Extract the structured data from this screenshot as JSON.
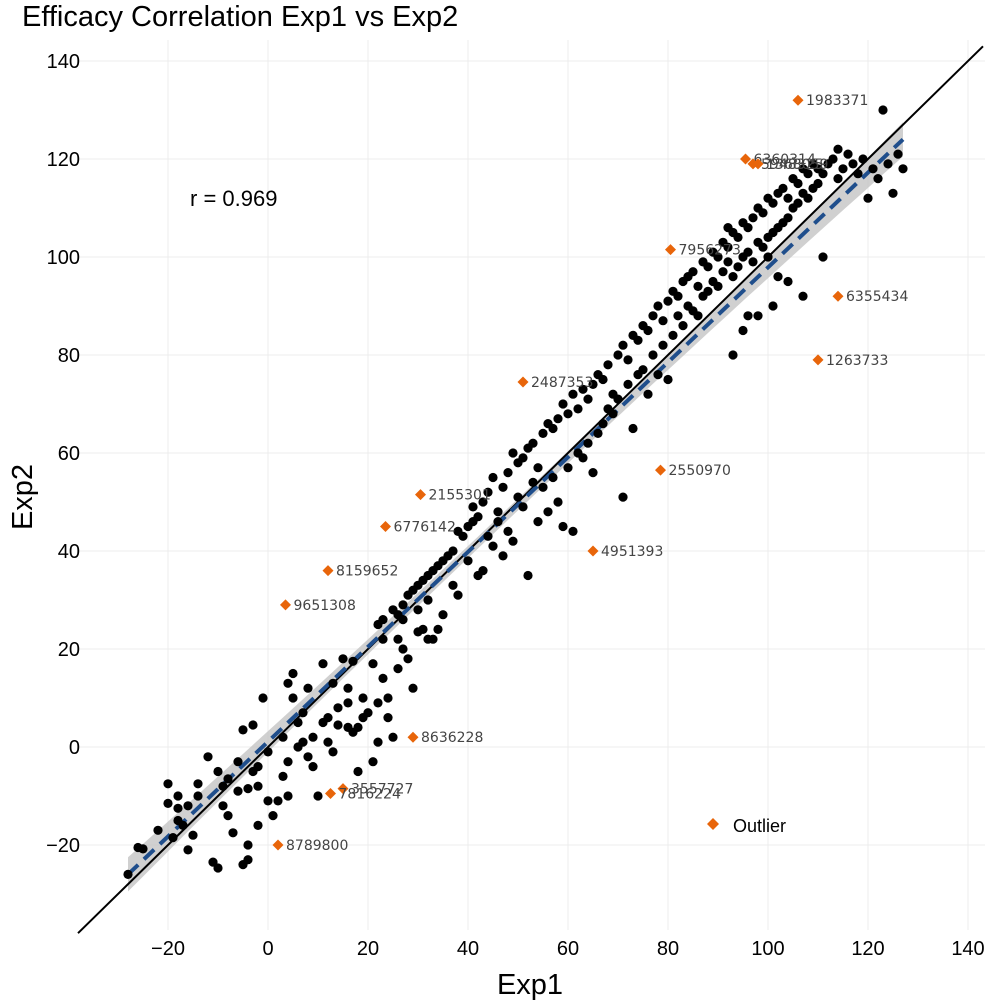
{
  "chart_data": {
    "type": "scatter",
    "title": "Efficacy Correlation Exp1 vs Exp2",
    "xlabel": "Exp1",
    "ylabel": "Exp2",
    "xlim": [
      -30,
      143
    ],
    "ylim": [
      -38,
      143
    ],
    "x_ticks": [
      -20,
      0,
      20,
      40,
      60,
      80,
      100,
      120,
      140
    ],
    "y_ticks": [
      -20,
      0,
      20,
      40,
      60,
      80,
      100,
      120,
      140
    ],
    "x_tick_labels": [
      "−20",
      "0",
      "20",
      "40",
      "60",
      "80",
      "100",
      "120",
      "140"
    ],
    "y_tick_labels": [
      "−20",
      "0",
      "20",
      "40",
      "60",
      "80",
      "100",
      "120",
      "140"
    ],
    "grid": true,
    "annotation": "r = 0.969",
    "legend": {
      "position": "bottom-right",
      "entries": [
        {
          "name": "Outlier",
          "color": "#e8650a",
          "marker": "diamond"
        }
      ]
    },
    "colors": {
      "points": "#000000",
      "outlier": "#e8650a",
      "fit": "#1f4e8c",
      "identity": "#000000",
      "band": "#c8c8c8"
    },
    "identity_line": {
      "x": [
        -38,
        143
      ],
      "y": [
        -38,
        143
      ]
    },
    "fit_line": {
      "x": [
        -28,
        127
      ],
      "y": [
        -26,
        124
      ],
      "ci_halfwidth_ends": 3.5,
      "ci_halfwidth_mid": 1.2
    },
    "points": [
      [
        -28,
        -26
      ],
      [
        -26,
        -20.5
      ],
      [
        -25,
        -20.8
      ],
      [
        -22,
        -17
      ],
      [
        -20,
        -7.5
      ],
      [
        -20,
        -11.5
      ],
      [
        -19,
        -18.5
      ],
      [
        -18,
        -10
      ],
      [
        -18,
        -12.5
      ],
      [
        -18,
        -15
      ],
      [
        -17,
        -16
      ],
      [
        -16,
        -21
      ],
      [
        -16,
        -12
      ],
      [
        -15,
        -18
      ],
      [
        -14,
        -10
      ],
      [
        -14,
        -7.5
      ],
      [
        -12,
        -2
      ],
      [
        -11,
        -23.5
      ],
      [
        -10,
        -24.7
      ],
      [
        -10,
        -5
      ],
      [
        -9,
        -8
      ],
      [
        -9,
        -12
      ],
      [
        -8,
        -6.5
      ],
      [
        -8,
        -14
      ],
      [
        -7,
        -17.5
      ],
      [
        -6,
        -3
      ],
      [
        -6,
        -9
      ],
      [
        -5,
        3.5
      ],
      [
        -5,
        -24
      ],
      [
        -4,
        -23
      ],
      [
        -4,
        -20
      ],
      [
        -4,
        -8.5
      ],
      [
        -3,
        4.5
      ],
      [
        -3,
        -5
      ],
      [
        -2,
        -8
      ],
      [
        -2,
        -4
      ],
      [
        -2,
        -16
      ],
      [
        -1,
        10
      ],
      [
        0,
        -1
      ],
      [
        0,
        -11
      ],
      [
        1,
        -14
      ],
      [
        2,
        -11
      ],
      [
        3,
        2
      ],
      [
        3,
        -6
      ],
      [
        4,
        -3
      ],
      [
        4,
        -10
      ],
      [
        4,
        13
      ],
      [
        5,
        15
      ],
      [
        5,
        10
      ],
      [
        6,
        0
      ],
      [
        6,
        5
      ],
      [
        7,
        1
      ],
      [
        7,
        7
      ],
      [
        8,
        -2
      ],
      [
        8,
        12
      ],
      [
        9,
        -4
      ],
      [
        9,
        2
      ],
      [
        10,
        -10
      ],
      [
        11,
        17
      ],
      [
        11,
        5
      ],
      [
        12,
        6
      ],
      [
        12,
        1
      ],
      [
        13,
        -1
      ],
      [
        13,
        13
      ],
      [
        14,
        4.5
      ],
      [
        14,
        8
      ],
      [
        15,
        18
      ],
      [
        16,
        4
      ],
      [
        16,
        9
      ],
      [
        16,
        12
      ],
      [
        17,
        3
      ],
      [
        17,
        17.5
      ],
      [
        18,
        -5
      ],
      [
        18,
        4
      ],
      [
        19,
        6
      ],
      [
        19,
        10
      ],
      [
        20,
        7
      ],
      [
        21,
        -3
      ],
      [
        21,
        17
      ],
      [
        22,
        1
      ],
      [
        22,
        9
      ],
      [
        23,
        22
      ],
      [
        23,
        14
      ],
      [
        24,
        10
      ],
      [
        24,
        6
      ],
      [
        25,
        2
      ],
      [
        26,
        22
      ],
      [
        26,
        16
      ],
      [
        27,
        26
      ],
      [
        27,
        20
      ],
      [
        28,
        18
      ],
      [
        29,
        12
      ],
      [
        30,
        23.5
      ],
      [
        30,
        28
      ],
      [
        31,
        24
      ],
      [
        32,
        22
      ],
      [
        32,
        30
      ],
      [
        33,
        22
      ],
      [
        34,
        24
      ],
      [
        35,
        27
      ],
      [
        22,
        25
      ],
      [
        23,
        26
      ],
      [
        25,
        28
      ],
      [
        26,
        27
      ],
      [
        27,
        29
      ],
      [
        28,
        31
      ],
      [
        29,
        32
      ],
      [
        30,
        33
      ],
      [
        31,
        34
      ],
      [
        32,
        35
      ],
      [
        33,
        36
      ],
      [
        34,
        37
      ],
      [
        35,
        38
      ],
      [
        36,
        39
      ],
      [
        37,
        40
      ],
      [
        37,
        33
      ],
      [
        38,
        44
      ],
      [
        38,
        31
      ],
      [
        39,
        43
      ],
      [
        40,
        38
      ],
      [
        40,
        45
      ],
      [
        41,
        46
      ],
      [
        41,
        49
      ],
      [
        42,
        35
      ],
      [
        42,
        47
      ],
      [
        43,
        50
      ],
      [
        43,
        36
      ],
      [
        44,
        43
      ],
      [
        44,
        52
      ],
      [
        45,
        41
      ],
      [
        45,
        55
      ],
      [
        46,
        46
      ],
      [
        46,
        48
      ],
      [
        47,
        53
      ],
      [
        47,
        39
      ],
      [
        48,
        56
      ],
      [
        48,
        44
      ],
      [
        49,
        60
      ],
      [
        49,
        42
      ],
      [
        50,
        58
      ],
      [
        50,
        51
      ],
      [
        51,
        59
      ],
      [
        51,
        49
      ],
      [
        52,
        61
      ],
      [
        52,
        35
      ],
      [
        53,
        54
      ],
      [
        53,
        62
      ],
      [
        54,
        57
      ],
      [
        54,
        46
      ],
      [
        55,
        64
      ],
      [
        55,
        53
      ],
      [
        56,
        66
      ],
      [
        56,
        48
      ],
      [
        57,
        65
      ],
      [
        57,
        55
      ],
      [
        58,
        67
      ],
      [
        58,
        50
      ],
      [
        59,
        70
      ],
      [
        59,
        45
      ],
      [
        60,
        68
      ],
      [
        60,
        57
      ],
      [
        61,
        72
      ],
      [
        61,
        44
      ],
      [
        62,
        69
      ],
      [
        62,
        60
      ],
      [
        63,
        73
      ],
      [
        63,
        59
      ],
      [
        64,
        71
      ],
      [
        64,
        62
      ],
      [
        65,
        74
      ],
      [
        65,
        56
      ],
      [
        66,
        76
      ],
      [
        66,
        64
      ],
      [
        67,
        75
      ],
      [
        67,
        66
      ],
      [
        68,
        78
      ],
      [
        68,
        69
      ],
      [
        69,
        72
      ],
      [
        69,
        68
      ],
      [
        70,
        80
      ],
      [
        70,
        71
      ],
      [
        71,
        82
      ],
      [
        71,
        51
      ],
      [
        72,
        79
      ],
      [
        72,
        74
      ],
      [
        73,
        84
      ],
      [
        73,
        65
      ],
      [
        74,
        83
      ],
      [
        74,
        76
      ],
      [
        75,
        86
      ],
      [
        75,
        77
      ],
      [
        76,
        85
      ],
      [
        76,
        72
      ],
      [
        77,
        88
      ],
      [
        77,
        80
      ],
      [
        78,
        90
      ],
      [
        78,
        76
      ],
      [
        79,
        87
      ],
      [
        79,
        82
      ],
      [
        80,
        91
      ],
      [
        80,
        75
      ],
      [
        81,
        93
      ],
      [
        81,
        84
      ],
      [
        82,
        92
      ],
      [
        82,
        88
      ],
      [
        83,
        95
      ],
      [
        83,
        86
      ],
      [
        84,
        96
      ],
      [
        84,
        90
      ],
      [
        85,
        97
      ],
      [
        85,
        89
      ],
      [
        86,
        94
      ],
      [
        86,
        88
      ],
      [
        87,
        99
      ],
      [
        87,
        92
      ],
      [
        88,
        98
      ],
      [
        88,
        93
      ],
      [
        89,
        101
      ],
      [
        89,
        95
      ],
      [
        90,
        100
      ],
      [
        90,
        94
      ],
      [
        91,
        103
      ],
      [
        91,
        97
      ],
      [
        92,
        102
      ],
      [
        92,
        99
      ],
      [
        93,
        105
      ],
      [
        93,
        96
      ],
      [
        94,
        104
      ],
      [
        94,
        98
      ],
      [
        95,
        107
      ],
      [
        95,
        100
      ],
      [
        96,
        106
      ],
      [
        96,
        101
      ],
      [
        97,
        108
      ],
      [
        97,
        99
      ],
      [
        98,
        110
      ],
      [
        98,
        103
      ],
      [
        99,
        109
      ],
      [
        99,
        102
      ],
      [
        100,
        112
      ],
      [
        100,
        104
      ],
      [
        101,
        111
      ],
      [
        101,
        105
      ],
      [
        102,
        113
      ],
      [
        102,
        106
      ],
      [
        103,
        114
      ],
      [
        103,
        107
      ],
      [
        104,
        112
      ],
      [
        104,
        108
      ],
      [
        105,
        116
      ],
      [
        105,
        110
      ],
      [
        106,
        115
      ],
      [
        106,
        111
      ],
      [
        107,
        118
      ],
      [
        107,
        113
      ],
      [
        108,
        117
      ],
      [
        108,
        112
      ],
      [
        109,
        119
      ],
      [
        109,
        114
      ],
      [
        110,
        118
      ],
      [
        110,
        115
      ],
      [
        111,
        117
      ],
      [
        112,
        119
      ],
      [
        113,
        120
      ],
      [
        114,
        116
      ],
      [
        115,
        118
      ],
      [
        116,
        121
      ],
      [
        117,
        119
      ],
      [
        118,
        117
      ],
      [
        119,
        120
      ],
      [
        120,
        112
      ],
      [
        121,
        118
      ],
      [
        122,
        116
      ],
      [
        123,
        130
      ],
      [
        124,
        119
      ],
      [
        125,
        113
      ],
      [
        126,
        121
      ],
      [
        127,
        118
      ],
      [
        114,
        122
      ],
      [
        111,
        100
      ],
      [
        107,
        92
      ],
      [
        104,
        95
      ],
      [
        101,
        90
      ],
      [
        98,
        88
      ],
      [
        95,
        85
      ],
      [
        93,
        80
      ],
      [
        92,
        106
      ],
      [
        96,
        88
      ],
      [
        100,
        100
      ],
      [
        102,
        96
      ]
    ],
    "outliers": [
      {
        "x": 106,
        "y": 132,
        "label": "1983371"
      },
      {
        "x": 95.5,
        "y": 120,
        "label": "6360314"
      },
      {
        "x": 97,
        "y": 119,
        "label": "5948325"
      },
      {
        "x": 98,
        "y": 119,
        "label": "1368059"
      },
      {
        "x": 80.5,
        "y": 101.5,
        "label": "7956273"
      },
      {
        "x": 114,
        "y": 92,
        "label": "6355434"
      },
      {
        "x": 110,
        "y": 79,
        "label": "1263733"
      },
      {
        "x": 51,
        "y": 74.5,
        "label": "2487353"
      },
      {
        "x": 78.5,
        "y": 56.5,
        "label": "2550970"
      },
      {
        "x": 30.5,
        "y": 51.5,
        "label": "2155301"
      },
      {
        "x": 23.5,
        "y": 45,
        "label": "6776142"
      },
      {
        "x": 65,
        "y": 40,
        "label": "4951393"
      },
      {
        "x": 12,
        "y": 36,
        "label": "8159652"
      },
      {
        "x": 3.5,
        "y": 29,
        "label": "9651308"
      },
      {
        "x": 29,
        "y": 2,
        "label": "8636228"
      },
      {
        "x": 15,
        "y": -8.5,
        "label": "3557727"
      },
      {
        "x": 12.5,
        "y": -9.5,
        "label": "7816224"
      },
      {
        "x": 2,
        "y": -20,
        "label": "8789800"
      }
    ]
  }
}
